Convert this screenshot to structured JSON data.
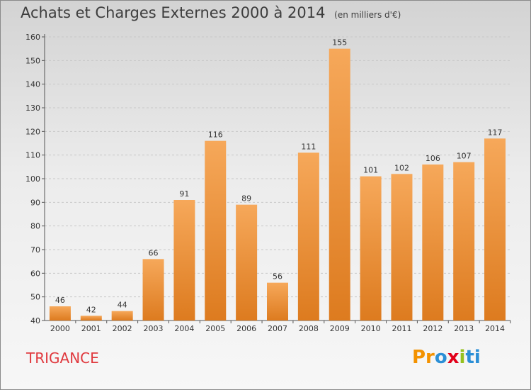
{
  "title": "Achats et Charges Externes 2000 à 2014",
  "units": "(en milliers d'€)",
  "commune": "TRIGANCE",
  "logo": {
    "p1": "Pr",
    "p2": "o",
    "p3": "x",
    "p4": "i",
    "p5": "ti"
  },
  "colors": {
    "bar_top": "#f6a85a",
    "bar_bottom": "#dd7b1f",
    "title": "#3d3d3d",
    "commune": "#e0393e",
    "grid": "#c8c8c8"
  },
  "chart_data": {
    "type": "bar",
    "categories": [
      "2000",
      "2001",
      "2002",
      "2003",
      "2004",
      "2005",
      "2006",
      "2007",
      "2008",
      "2009",
      "2010",
      "2011",
      "2012",
      "2013",
      "2014"
    ],
    "values": [
      46,
      42,
      44,
      66,
      91,
      116,
      89,
      56,
      111,
      155,
      101,
      102,
      106,
      107,
      117
    ],
    "title": "Achats et Charges Externes 2000 à 2014",
    "xlabel": "",
    "ylabel": "",
    "ylim": [
      40,
      160
    ],
    "yticks": [
      40,
      50,
      60,
      70,
      80,
      90,
      100,
      110,
      120,
      130,
      140,
      150,
      160
    ],
    "grid": true
  }
}
